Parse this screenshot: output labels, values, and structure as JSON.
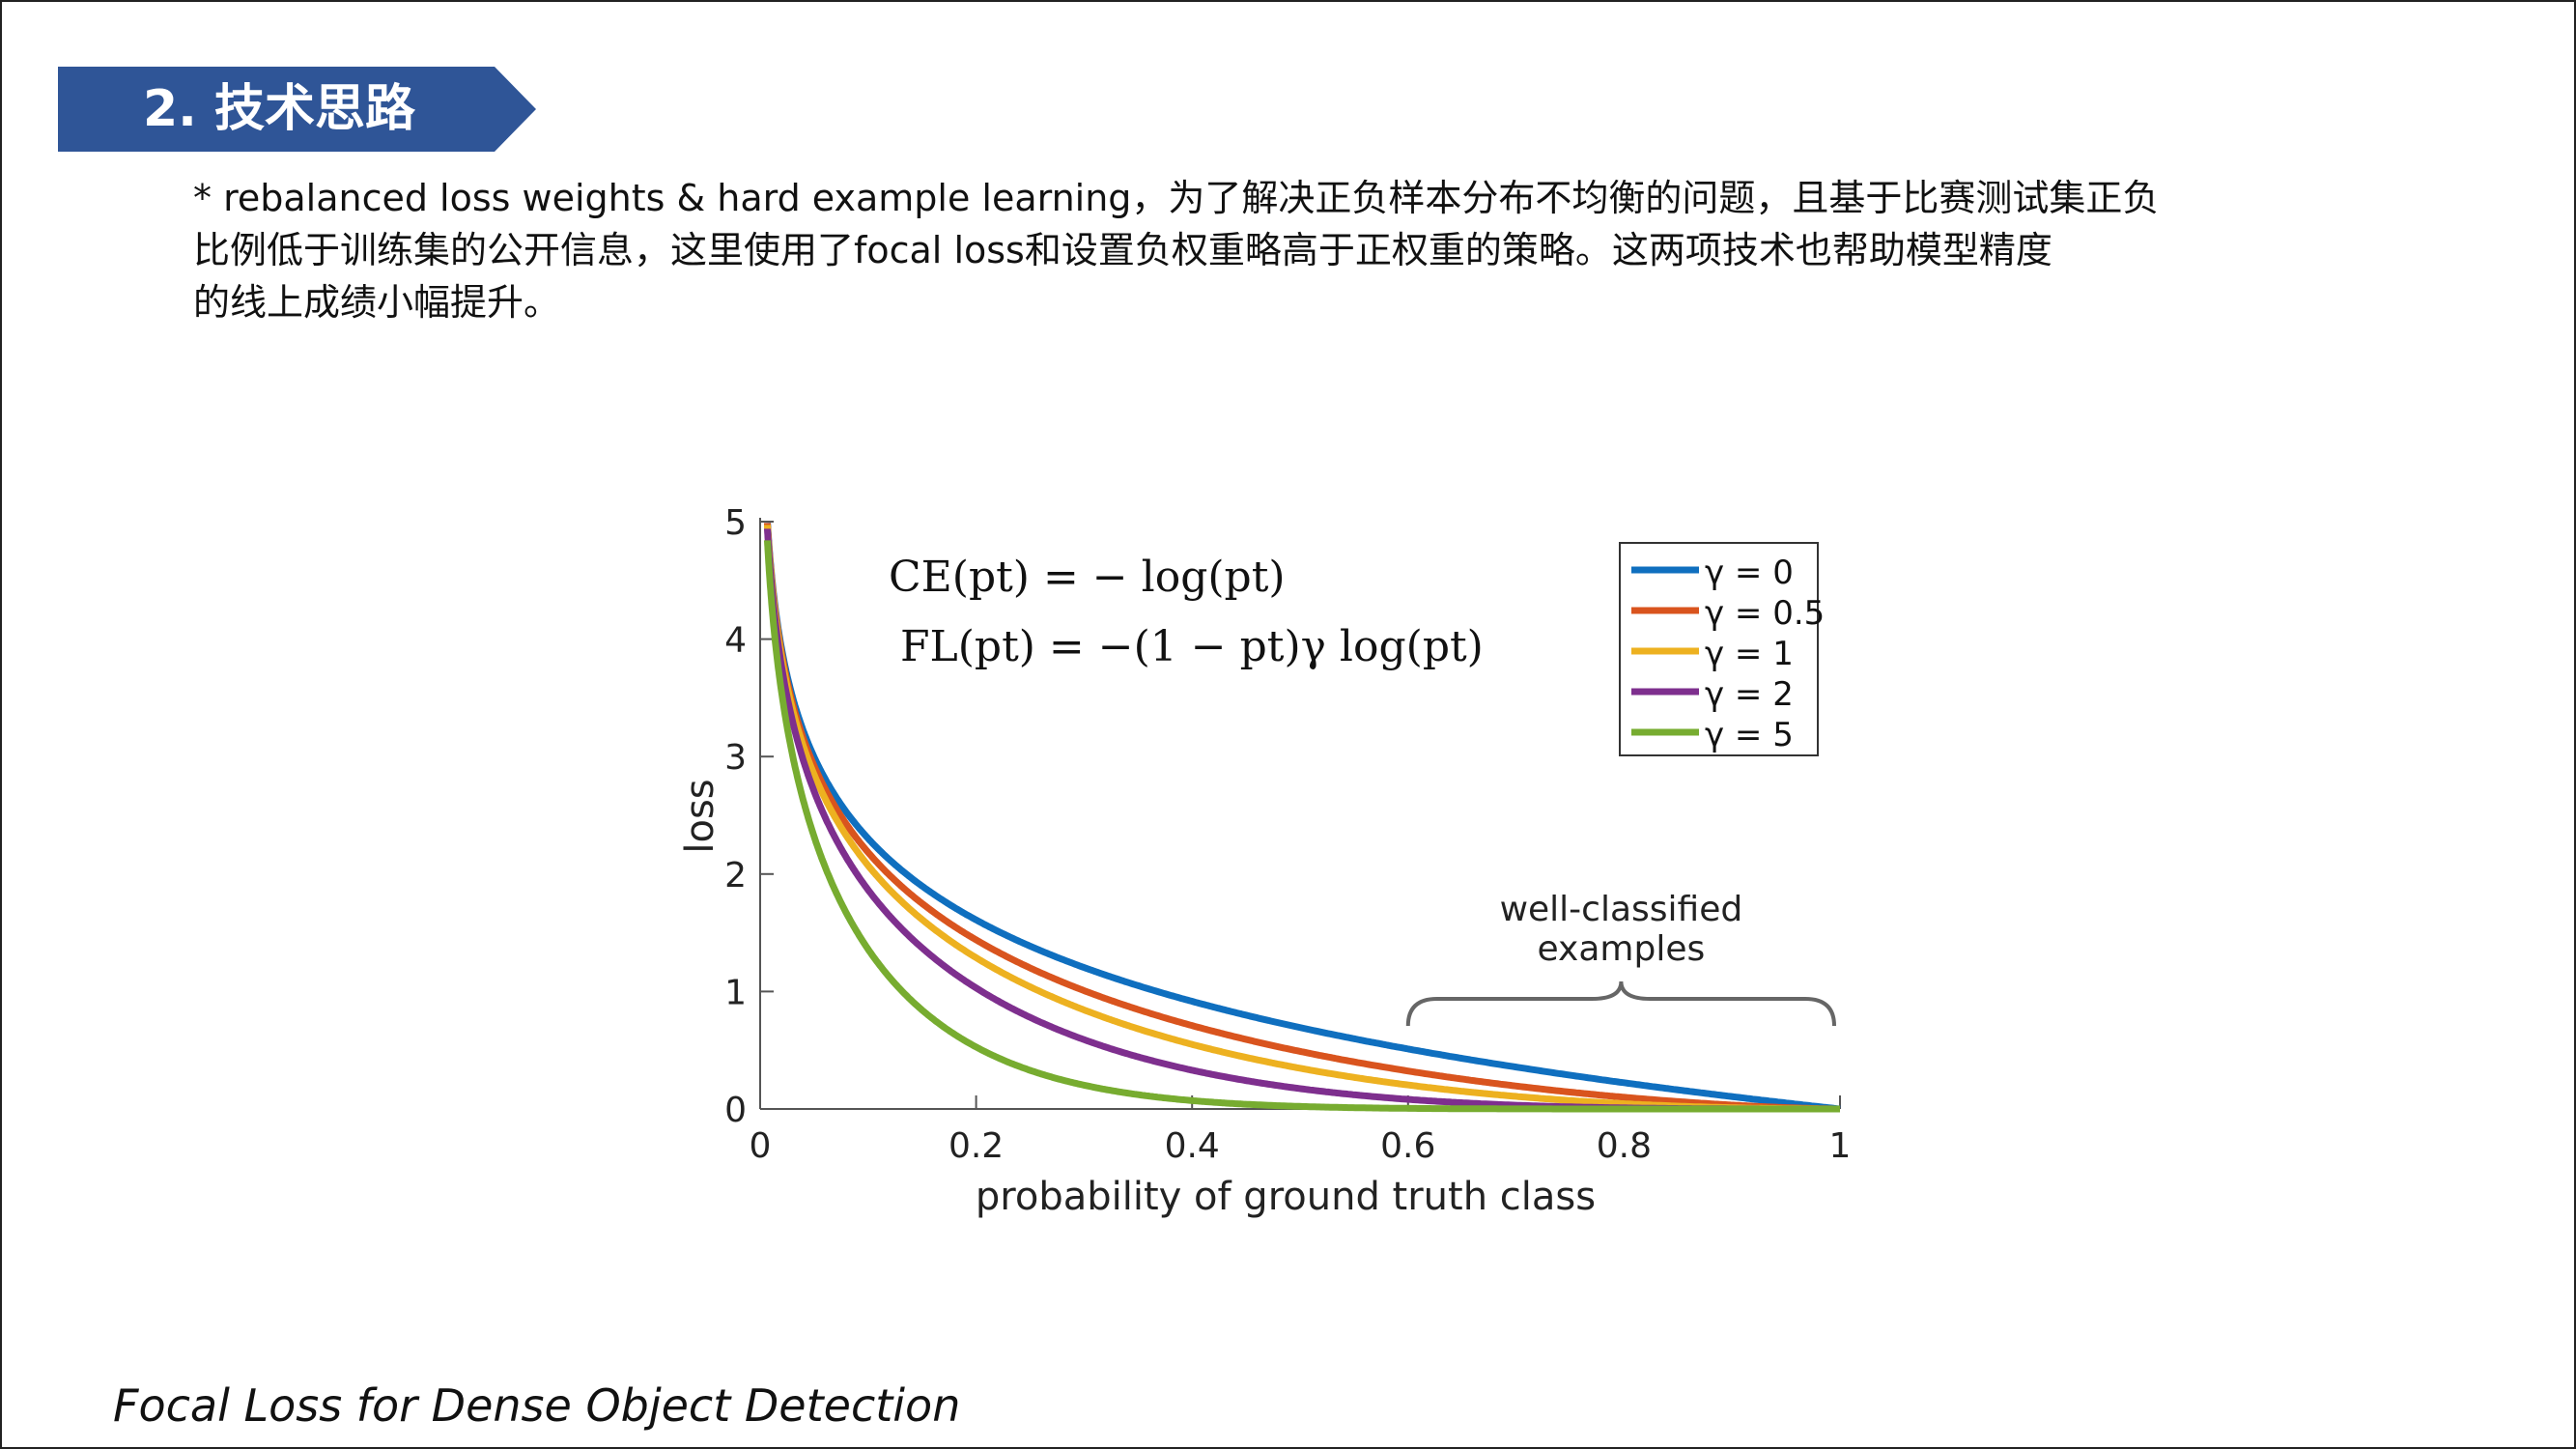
{
  "section": {
    "title": "2. 技术思路",
    "color": "#2f5597"
  },
  "paragraph": {
    "lines": [
      "* rebalanced loss weights & hard example learning，为了解决正负样本分布不均衡的问题，且基于比赛测试集正负",
      "比例低于训练集的公开信息，这里使用了focal loss和设置负权重略高于正权重的策略。这两项技术也帮助模型精度",
      "的线上成绩小幅提升。"
    ]
  },
  "chart_data": {
    "type": "line",
    "xlabel": "probability of ground truth class",
    "ylabel": "loss",
    "xlim": [
      0,
      1
    ],
    "ylim": [
      0,
      5
    ],
    "xticks": [
      "0",
      "0.2",
      "0.4",
      "0.6",
      "0.8",
      "1"
    ],
    "yticks": [
      "0",
      "1",
      "2",
      "3",
      "4",
      "5"
    ],
    "formulas": {
      "ce": "CE(pt) = − log(pt)",
      "fl": "FL(pt) = −(1 − pt)γ log(pt)"
    },
    "legend_position": "top-right",
    "series": [
      {
        "name": "γ = 0",
        "gamma": 0,
        "color": "#0f6fbf"
      },
      {
        "name": "γ = 0.5",
        "gamma": 0.5,
        "color": "#d9541e"
      },
      {
        "name": "γ = 1",
        "gamma": 1,
        "color": "#edb120"
      },
      {
        "name": "γ = 2",
        "gamma": 2,
        "color": "#7e2f8e"
      },
      {
        "name": "γ = 5",
        "gamma": 5,
        "color": "#77ac30"
      }
    ],
    "annotation": {
      "lines": [
        "well-classified",
        "examples"
      ],
      "x_range": [
        0.6,
        1
      ]
    }
  },
  "caption": "Focal Loss for Dense Object Detection"
}
